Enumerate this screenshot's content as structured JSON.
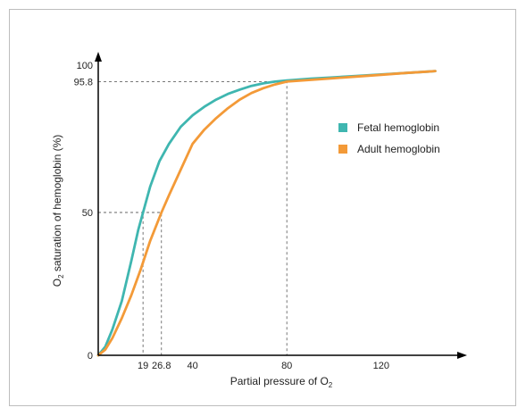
{
  "chart_data": {
    "type": "line",
    "xlabel": "Partial pressure of O",
    "xlabel_sub": "2",
    "ylabel_prefix": "O",
    "ylabel_sub": "2",
    "ylabel_rest": " saturation of hemoglobin (%)",
    "xlim": [
      0,
      150
    ],
    "ylim": [
      0,
      100
    ],
    "x_ticks": [
      19,
      26.8,
      40,
      80,
      120
    ],
    "x_tick_labels": [
      "19",
      "26.8",
      "40",
      "80",
      "120"
    ],
    "y_ticks": [
      0,
      50,
      95.8,
      100
    ],
    "y_tick_labels": [
      "0",
      "50",
      "95.8",
      "100"
    ],
    "grid": false,
    "legend_position": "right",
    "reference_lines": [
      {
        "x": 19,
        "y": 50
      },
      {
        "x": 26.8,
        "y": 50
      },
      {
        "x": 80,
        "y": 95.8
      }
    ],
    "series": [
      {
        "name": "Fetal hemoglobin",
        "color": "#3fb6b0",
        "x": [
          0,
          3,
          6,
          10,
          14,
          17,
          19,
          22,
          26,
          30,
          35,
          40,
          45,
          50,
          55,
          60,
          65,
          70,
          75,
          80,
          90,
          100,
          110,
          120,
          130,
          140,
          143
        ],
        "y": [
          0,
          3,
          9,
          19,
          33,
          44,
          50,
          59,
          68,
          74,
          80,
          84,
          87,
          89.5,
          91.5,
          93,
          94.3,
          95.2,
          95.8,
          96.2,
          96.8,
          97.3,
          97.8,
          98.3,
          98.8,
          99.3,
          99.5
        ]
      },
      {
        "name": "Adult hemoglobin",
        "color": "#f39a38",
        "x": [
          0,
          3,
          6,
          10,
          14,
          18,
          22,
          26.8,
          30,
          35,
          40,
          45,
          50,
          55,
          60,
          65,
          70,
          75,
          80,
          90,
          100,
          110,
          120,
          130,
          140,
          143
        ],
        "y": [
          0,
          2,
          6,
          13,
          21,
          30,
          40,
          50,
          56,
          65,
          74,
          79,
          83,
          86.5,
          89.5,
          91.8,
          93.5,
          94.8,
          95.8,
          96.4,
          97,
          97.6,
          98.2,
          98.8,
          99.3,
          99.5
        ]
      }
    ]
  }
}
